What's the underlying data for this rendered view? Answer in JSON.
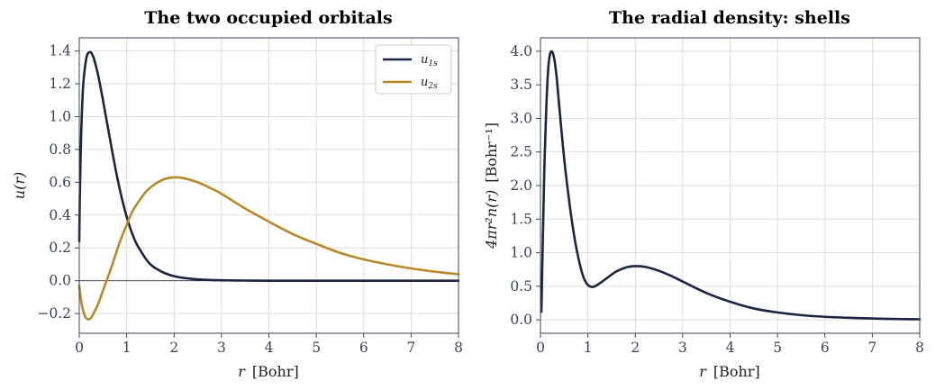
{
  "chart_data": [
    {
      "type": "line",
      "title": "The two occupied orbitals",
      "xlabel_var": "r",
      "xlabel_unit": "[Bohr]",
      "ylabel": "u(r)",
      "xlim": [
        0,
        8
      ],
      "ylim": [
        -0.32,
        1.48
      ],
      "xticks": [
        0,
        1,
        2,
        3,
        4,
        5,
        6,
        7,
        8
      ],
      "xtick_labels": [
        "0",
        "1",
        "2",
        "3",
        "4",
        "5",
        "6",
        "7",
        "8"
      ],
      "yticks": [
        -0.2,
        0,
        0.2,
        0.4,
        0.6,
        0.8,
        1.0,
        1.2,
        1.4
      ],
      "ytick_labels": [
        "−0.2",
        "0.0",
        "0.2",
        "0.4",
        "0.6",
        "0.8",
        "1.0",
        "1.2",
        "1.4"
      ],
      "grid": true,
      "zero_line": true,
      "legend_position": "top-right",
      "series": [
        {
          "name": "u1s",
          "legend_base": "u",
          "legend_sub": "1s",
          "color": "#1b2440",
          "x": [
            0.0,
            0.01,
            0.03,
            0.05,
            0.08,
            0.12,
            0.16,
            0.2,
            0.25,
            0.3,
            0.35,
            0.4,
            0.5,
            0.6,
            0.7,
            0.8,
            0.9,
            1.0,
            1.1,
            1.2,
            1.3,
            1.4,
            1.5,
            1.6,
            1.8,
            2.0,
            2.2,
            2.5,
            2.8,
            3.0,
            3.5,
            4.0,
            5.0,
            6.0,
            7.0,
            8.0
          ],
          "y": [
            0.24,
            0.48,
            0.78,
            0.98,
            1.18,
            1.3,
            1.37,
            1.39,
            1.39,
            1.36,
            1.31,
            1.25,
            1.1,
            0.94,
            0.78,
            0.63,
            0.5,
            0.39,
            0.3,
            0.23,
            0.18,
            0.135,
            0.1,
            0.078,
            0.047,
            0.028,
            0.017,
            0.008,
            0.004,
            0.003,
            0.001,
            0.0,
            0.0,
            0.0,
            0.0,
            0.0
          ]
        },
        {
          "name": "u2s",
          "legend_base": "u",
          "legend_sub": "2s",
          "color": "#b8892a",
          "x": [
            0.0,
            0.05,
            0.1,
            0.15,
            0.2,
            0.25,
            0.3,
            0.4,
            0.5,
            0.6,
            0.7,
            0.8,
            0.9,
            1.0,
            1.1,
            1.2,
            1.4,
            1.6,
            1.8,
            2.0,
            2.2,
            2.5,
            2.8,
            3.0,
            3.5,
            4.0,
            4.5,
            5.0,
            5.5,
            6.0,
            6.5,
            7.0,
            7.5,
            8.0
          ],
          "y": [
            -0.03,
            -0.14,
            -0.2,
            -0.23,
            -0.235,
            -0.225,
            -0.2,
            -0.14,
            -0.06,
            0.02,
            0.1,
            0.19,
            0.27,
            0.34,
            0.41,
            0.46,
            0.54,
            0.59,
            0.62,
            0.63,
            0.625,
            0.6,
            0.56,
            0.53,
            0.44,
            0.36,
            0.285,
            0.225,
            0.17,
            0.13,
            0.1,
            0.075,
            0.055,
            0.04
          ]
        }
      ]
    },
    {
      "type": "line",
      "title": "The radial density: shells",
      "xlabel_var": "r",
      "xlabel_unit": "[Bohr]",
      "ylabel_var": "4πr²n(r)",
      "ylabel_unit": "[Bohr⁻¹]",
      "xlim": [
        0,
        8
      ],
      "ylim": [
        -0.2,
        4.2
      ],
      "xticks": [
        0,
        1,
        2,
        3,
        4,
        5,
        6,
        7,
        8
      ],
      "xtick_labels": [
        "0",
        "1",
        "2",
        "3",
        "4",
        "5",
        "6",
        "7",
        "8"
      ],
      "yticks": [
        0,
        0.5,
        1.0,
        1.5,
        2.0,
        2.5,
        3.0,
        3.5,
        4.0
      ],
      "ytick_labels": [
        "0.0",
        "0.5",
        "1.0",
        "1.5",
        "2.0",
        "2.5",
        "3.0",
        "3.5",
        "4.0"
      ],
      "grid": true,
      "series": [
        {
          "name": "",
          "color": "#1b2440",
          "x": [
            0.02,
            0.05,
            0.08,
            0.12,
            0.16,
            0.2,
            0.25,
            0.3,
            0.35,
            0.4,
            0.5,
            0.6,
            0.7,
            0.8,
            0.9,
            1.0,
            1.1,
            1.2,
            1.4,
            1.6,
            1.8,
            2.0,
            2.2,
            2.5,
            2.8,
            3.0,
            3.5,
            4.0,
            4.5,
            5.0,
            5.5,
            6.0,
            6.5,
            7.0,
            7.5,
            8.0
          ],
          "y": [
            0.12,
            1.2,
            2.2,
            3.1,
            3.7,
            3.95,
            3.99,
            3.85,
            3.55,
            3.15,
            2.4,
            1.8,
            1.3,
            0.92,
            0.65,
            0.52,
            0.49,
            0.52,
            0.62,
            0.72,
            0.78,
            0.8,
            0.79,
            0.73,
            0.64,
            0.57,
            0.4,
            0.27,
            0.17,
            0.11,
            0.07,
            0.045,
            0.03,
            0.02,
            0.012,
            0.008
          ]
        }
      ]
    }
  ]
}
